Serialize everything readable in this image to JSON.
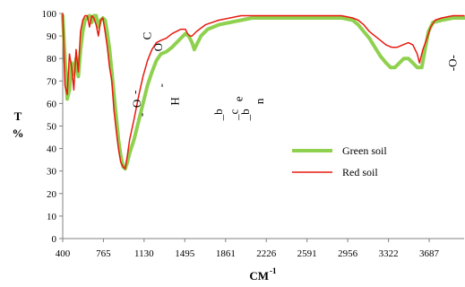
{
  "chart_data": {
    "type": "line",
    "title": "",
    "xlabel": "CM",
    "xlabel_superscript": "-1",
    "ylabel_top": "T",
    "ylabel_bottom": "%",
    "xlim": [
      400,
      4000
    ],
    "ylim": [
      0,
      100
    ],
    "xticks": [
      400,
      765,
      1130,
      1495,
      1861,
      2226,
      2591,
      2956,
      3322,
      3687
    ],
    "yticks": [
      0,
      10,
      20,
      30,
      40,
      50,
      60,
      70,
      80,
      90,
      100
    ],
    "grid": false,
    "legend_position": "right-middle",
    "series": [
      {
        "name": "Green soil",
        "color": "#8fd14f",
        "points": [
          [
            400,
            99
          ],
          [
            420,
            80
          ],
          [
            440,
            62
          ],
          [
            460,
            66
          ],
          [
            480,
            78
          ],
          [
            500,
            73
          ],
          [
            520,
            80
          ],
          [
            540,
            72
          ],
          [
            560,
            84
          ],
          [
            580,
            92
          ],
          [
            600,
            97
          ],
          [
            620,
            98
          ],
          [
            640,
            99
          ],
          [
            660,
            96
          ],
          [
            680,
            99
          ],
          [
            700,
            99
          ],
          [
            720,
            94
          ],
          [
            740,
            97
          ],
          [
            760,
            98
          ],
          [
            780,
            97
          ],
          [
            800,
            91
          ],
          [
            820,
            84
          ],
          [
            840,
            74
          ],
          [
            860,
            64
          ],
          [
            880,
            54
          ],
          [
            900,
            44
          ],
          [
            920,
            37
          ],
          [
            940,
            32
          ],
          [
            960,
            31
          ],
          [
            980,
            34
          ],
          [
            1000,
            38
          ],
          [
            1040,
            44
          ],
          [
            1080,
            52
          ],
          [
            1120,
            60
          ],
          [
            1160,
            68
          ],
          [
            1200,
            74
          ],
          [
            1240,
            79
          ],
          [
            1280,
            82
          ],
          [
            1330,
            83
          ],
          [
            1380,
            85
          ],
          [
            1440,
            88
          ],
          [
            1480,
            90
          ],
          [
            1500,
            91
          ],
          [
            1530,
            90
          ],
          [
            1560,
            87
          ],
          [
            1580,
            84
          ],
          [
            1600,
            86
          ],
          [
            1640,
            90
          ],
          [
            1700,
            93
          ],
          [
            1800,
            95
          ],
          [
            1900,
            96
          ],
          [
            2000,
            97
          ],
          [
            2100,
            98
          ],
          [
            2300,
            98
          ],
          [
            2500,
            98
          ],
          [
            2700,
            98
          ],
          [
            2900,
            98
          ],
          [
            3000,
            97
          ],
          [
            3050,
            95
          ],
          [
            3100,
            92
          ],
          [
            3150,
            89
          ],
          [
            3200,
            85
          ],
          [
            3250,
            81
          ],
          [
            3300,
            78
          ],
          [
            3340,
            76
          ],
          [
            3380,
            76
          ],
          [
            3420,
            78
          ],
          [
            3460,
            80
          ],
          [
            3500,
            80
          ],
          [
            3540,
            78
          ],
          [
            3580,
            76
          ],
          [
            3620,
            76
          ],
          [
            3650,
            84
          ],
          [
            3680,
            92
          ],
          [
            3720,
            96
          ],
          [
            3800,
            97
          ],
          [
            3900,
            98
          ],
          [
            4000,
            98
          ]
        ]
      },
      {
        "name": "Red soil",
        "color": "#e8190f",
        "points": [
          [
            400,
            100
          ],
          [
            410,
            85
          ],
          [
            420,
            68
          ],
          [
            440,
            64
          ],
          [
            460,
            82
          ],
          [
            480,
            76
          ],
          [
            500,
            66
          ],
          [
            520,
            84
          ],
          [
            540,
            74
          ],
          [
            560,
            92
          ],
          [
            580,
            97
          ],
          [
            600,
            99
          ],
          [
            620,
            99
          ],
          [
            640,
            94
          ],
          [
            660,
            99
          ],
          [
            680,
            98
          ],
          [
            700,
            95
          ],
          [
            720,
            90
          ],
          [
            740,
            97
          ],
          [
            760,
            98
          ],
          [
            780,
            92
          ],
          [
            800,
            85
          ],
          [
            820,
            76
          ],
          [
            840,
            70
          ],
          [
            860,
            57
          ],
          [
            880,
            48
          ],
          [
            900,
            40
          ],
          [
            920,
            34
          ],
          [
            940,
            32
          ],
          [
            960,
            31
          ],
          [
            980,
            37
          ],
          [
            1000,
            44
          ],
          [
            1040,
            53
          ],
          [
            1080,
            63
          ],
          [
            1120,
            72
          ],
          [
            1160,
            79
          ],
          [
            1200,
            84
          ],
          [
            1240,
            87
          ],
          [
            1280,
            88
          ],
          [
            1330,
            89
          ],
          [
            1380,
            91
          ],
          [
            1420,
            92
          ],
          [
            1460,
            93
          ],
          [
            1500,
            93
          ],
          [
            1520,
            91
          ],
          [
            1540,
            90
          ],
          [
            1560,
            90
          ],
          [
            1600,
            92
          ],
          [
            1680,
            95
          ],
          [
            1800,
            97
          ],
          [
            1900,
            98
          ],
          [
            2000,
            99
          ],
          [
            2200,
            99
          ],
          [
            2500,
            99
          ],
          [
            2700,
            99
          ],
          [
            2900,
            99
          ],
          [
            3000,
            98
          ],
          [
            3050,
            97
          ],
          [
            3100,
            95
          ],
          [
            3150,
            92
          ],
          [
            3200,
            90
          ],
          [
            3250,
            88
          ],
          [
            3300,
            86
          ],
          [
            3350,
            85
          ],
          [
            3400,
            85
          ],
          [
            3450,
            86
          ],
          [
            3500,
            87
          ],
          [
            3540,
            86
          ],
          [
            3580,
            82
          ],
          [
            3600,
            78
          ],
          [
            3630,
            84
          ],
          [
            3660,
            88
          ],
          [
            3700,
            94
          ],
          [
            3740,
            97
          ],
          [
            3800,
            98
          ],
          [
            3900,
            99
          ],
          [
            4000,
            99
          ]
        ]
      }
    ],
    "annotations": [
      {
        "text": "C",
        "x": 1190,
        "y": 90
      },
      {
        "text": "O",
        "x": 1290,
        "y": 85
      },
      {
        "text": "-",
        "x": 1080,
        "y": 65
      },
      {
        "text": "O",
        "x": 1100,
        "y": 60
      },
      {
        "text": "-",
        "x": 1140,
        "y": 55
      },
      {
        "text": "-",
        "x": 1315,
        "y": 68
      },
      {
        "text": "H",
        "x": 1440,
        "y": 61
      },
      {
        "text": "_b",
        "x": 1830,
        "y": 55
      },
      {
        "text": "_c",
        "x": 1970,
        "y": 55
      },
      {
        "text": "e",
        "x": 2010,
        "y": 62
      },
      {
        "text": "_b",
        "x": 2070,
        "y": 55
      },
      {
        "text": "n",
        "x": 2200,
        "y": 61
      },
      {
        "text": "-O-",
        "x": 3930,
        "y": 78
      }
    ]
  }
}
